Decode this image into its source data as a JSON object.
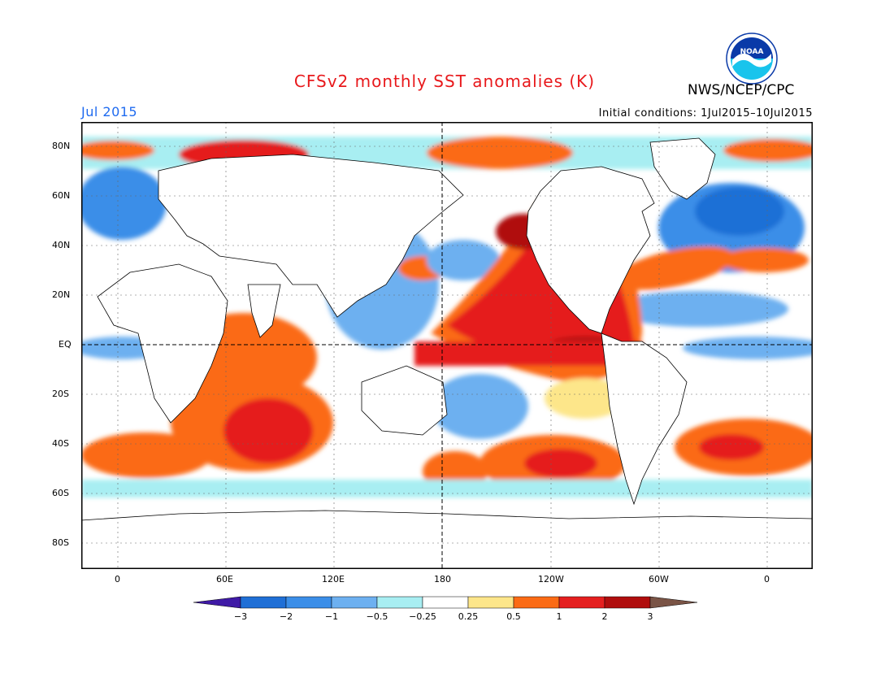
{
  "header": {
    "title": "CFSv2 monthly SST anomalies (K)",
    "agency": "NWS/NCEP/CPC",
    "month": "Jul 2015",
    "initial_conditions": "Initial conditions: 1Jul2015–10Jul2015",
    "logo_text": "NOAA"
  },
  "axes": {
    "lat_labels": [
      "80N",
      "60N",
      "40N",
      "20N",
      "EQ",
      "20S",
      "40S",
      "60S",
      "80S"
    ],
    "lon_labels": [
      "0",
      "60E",
      "120E",
      "180",
      "120W",
      "60W",
      "0"
    ]
  },
  "colorbar": {
    "tick_labels": [
      "−3",
      "−2",
      "−1",
      "−0.5",
      "−0.25",
      "0.25",
      "0.5",
      "1",
      "2",
      "3"
    ],
    "colors": [
      "#3f1aa6",
      "#1f6fd6",
      "#3b8ee8",
      "#6db0f0",
      "#a8eef2",
      "#ffffff",
      "#fde68a",
      "#fb6b15",
      "#e51f1f",
      "#b00d0d",
      "#7a5446"
    ]
  },
  "colors": {
    "title": "#e8191c",
    "month": "#1f6bf0",
    "land": "#ffffff",
    "noaa_blue": "#0a3aa8",
    "noaa_cyan": "#19c4ec"
  }
}
